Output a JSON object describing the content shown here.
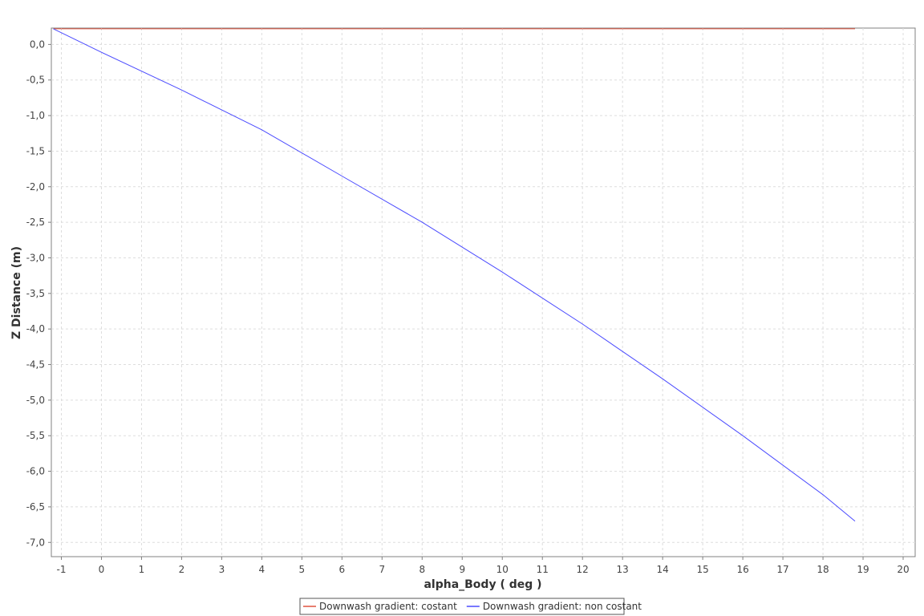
{
  "chart_data": {
    "type": "line",
    "title": "",
    "xlabel": "alpha_Body ( deg )",
    "ylabel": "Z Distance (m)",
    "xlim": [
      -1.25,
      20.3
    ],
    "ylim": [
      -7.2,
      0.23
    ],
    "x_ticks": [
      -1,
      0,
      1,
      2,
      3,
      4,
      5,
      6,
      7,
      8,
      9,
      10,
      11,
      12,
      13,
      14,
      15,
      16,
      17,
      18,
      19,
      20
    ],
    "y_ticks": [
      0.0,
      -0.5,
      -1.0,
      -1.5,
      -2.0,
      -2.5,
      -3.0,
      -3.5,
      -4.0,
      -4.5,
      -5.0,
      -5.5,
      -6.0,
      -6.5,
      -7.0
    ],
    "y_tick_labels": [
      "0,0",
      "-0,5",
      "-1,0",
      "-1,5",
      "-2,0",
      "-2,5",
      "-3,0",
      "-3,5",
      "-4,0",
      "-4,5",
      "-5,0",
      "-5,5",
      "-6,0",
      "-6,5",
      "-7,0"
    ],
    "grid": true,
    "legend_position": "bottom-center",
    "series": [
      {
        "name": "Downwash gradient: costant",
        "color": "#e0533f",
        "x": [
          -1.2,
          18.8
        ],
        "y": [
          0.22,
          0.22
        ]
      },
      {
        "name": "Downwash gradient: non costant",
        "color": "#4b4bff",
        "x": [
          -1.2,
          0,
          2,
          4,
          6,
          8,
          10,
          12,
          14,
          16,
          18,
          18.8
        ],
        "y": [
          0.22,
          -0.11,
          -0.64,
          -1.2,
          -1.85,
          -2.5,
          -3.2,
          -3.93,
          -4.7,
          -5.5,
          -6.33,
          -6.7
        ]
      }
    ]
  }
}
